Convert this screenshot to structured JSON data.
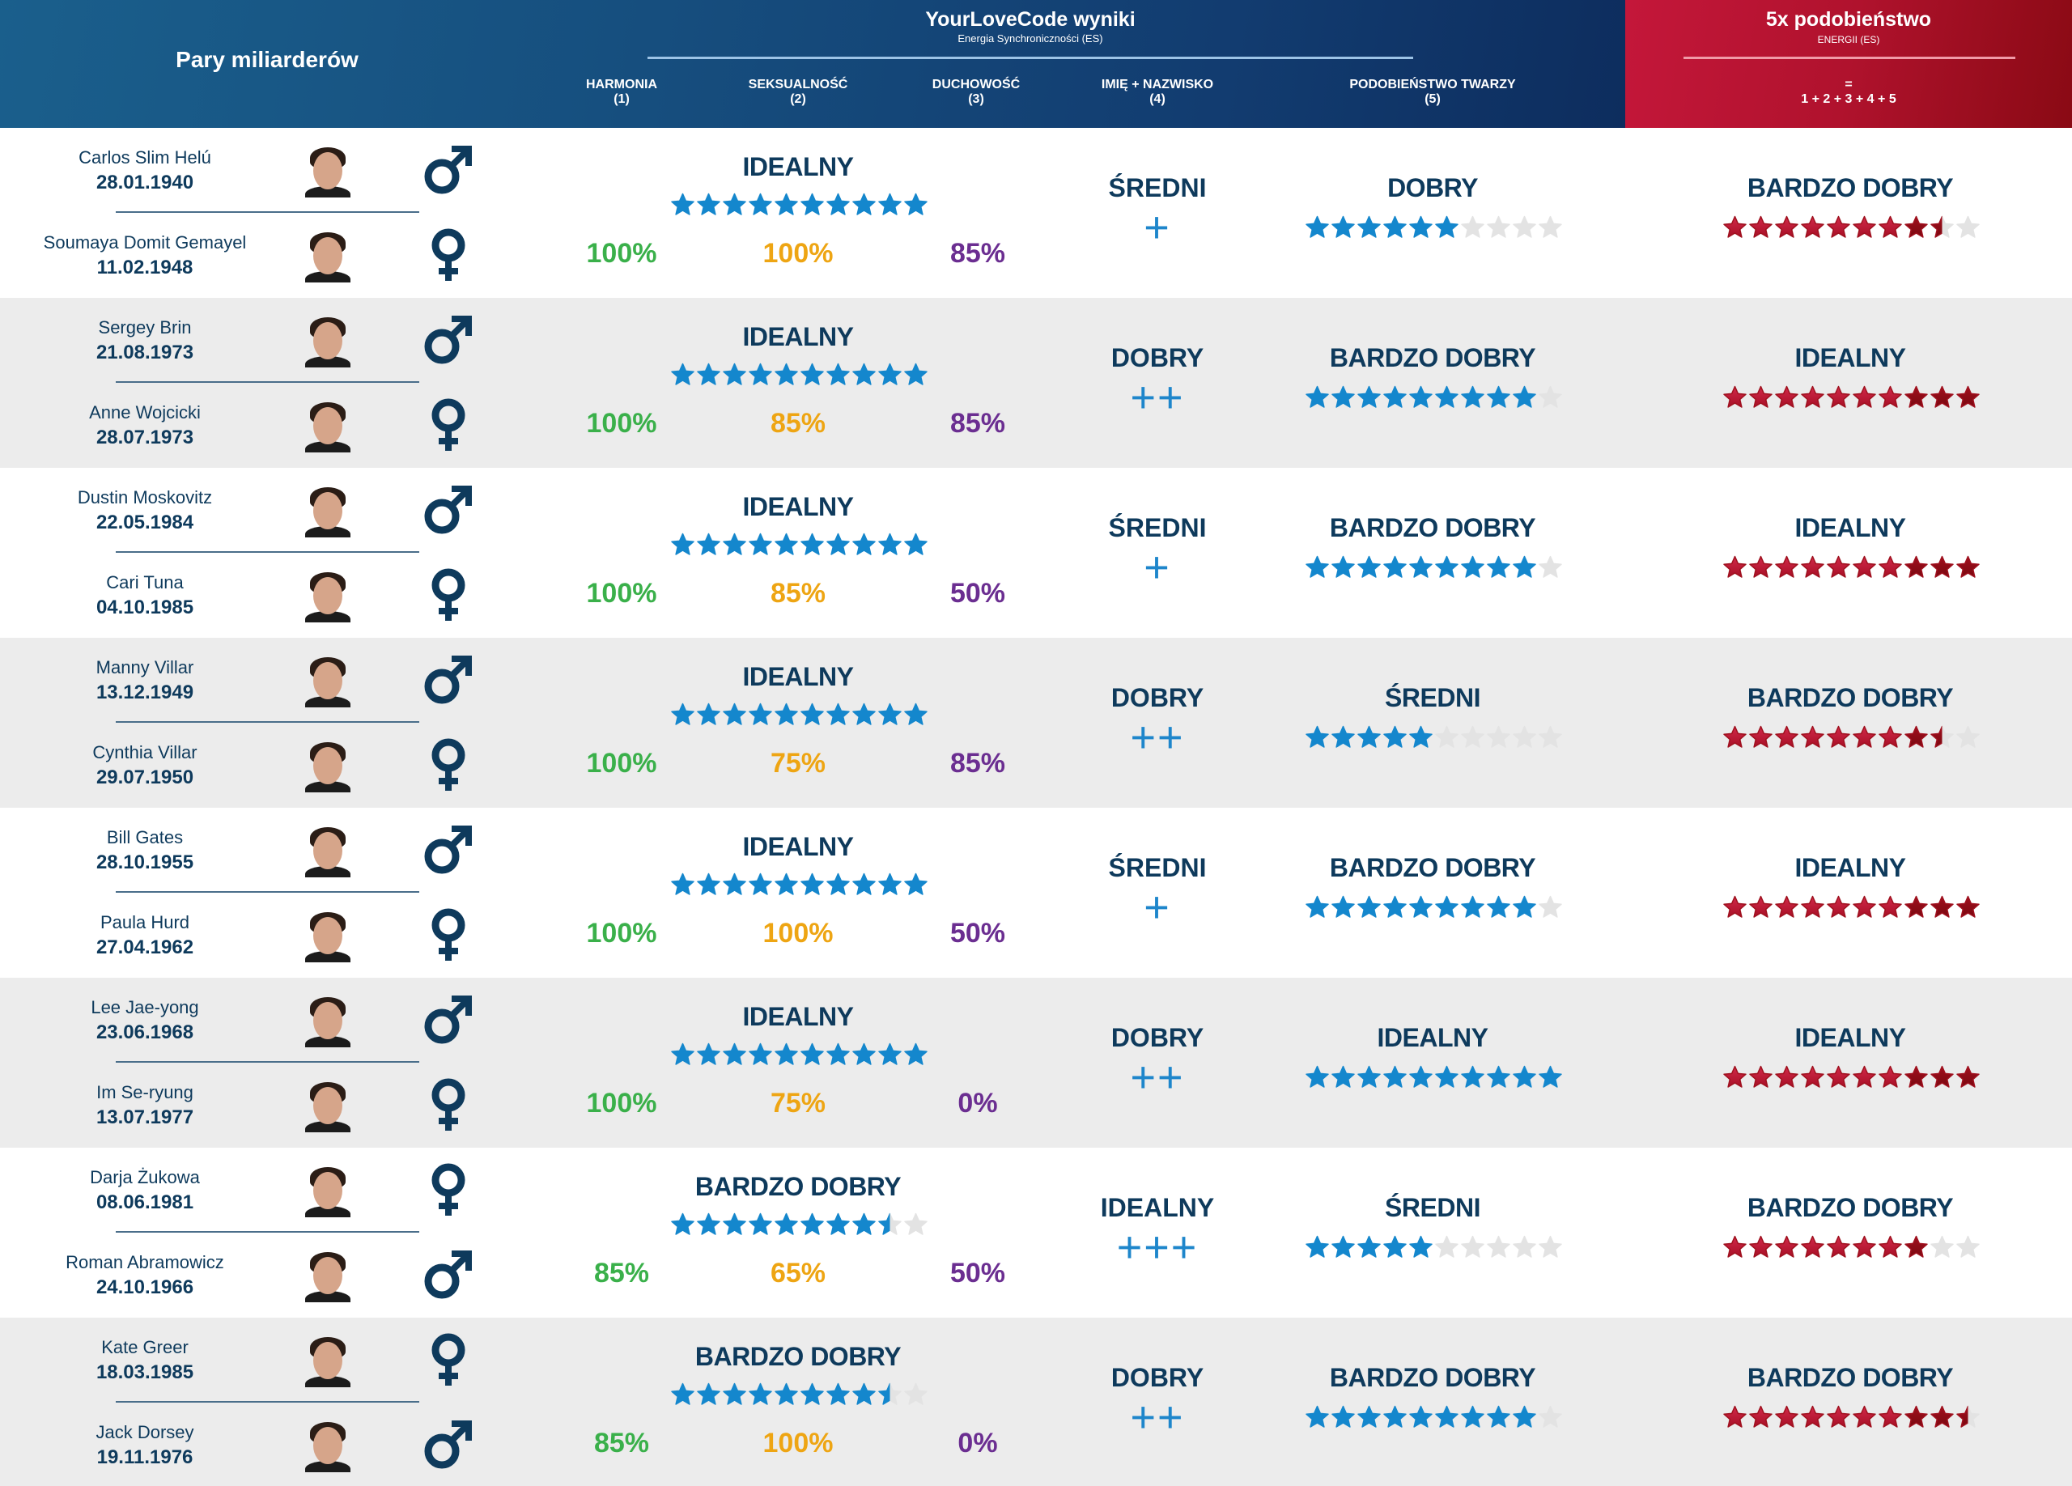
{
  "header": {
    "left_title": "Pary miliarderów",
    "main_title": "YourLoveCode wyniki",
    "main_subtitle": "Energia Synchroniczności (ES)",
    "columns": [
      {
        "label": "HARMONIA",
        "num": "(1)"
      },
      {
        "label": "SEKSUALNOŚĆ",
        "num": "(2)"
      },
      {
        "label": "DUCHOWOŚĆ",
        "num": "(3)"
      },
      {
        "label": "IMIĘ + NAZWISKO",
        "num": "(4)"
      },
      {
        "label": "PODOBIEŃSTWO TWARZY",
        "num": "(5)"
      }
    ],
    "red_title": "5x podobieństwo",
    "red_subtitle": "ENERGII (ES)",
    "red_eq": "=",
    "red_formula": "1 + 2 + 3 + 4 + 5"
  },
  "colors": {
    "header_blue": "#164e7e",
    "header_red": "#b0122d",
    "text_navy": "#0e3a5c",
    "star_blue": "#1487cd",
    "star_red": "#b8112b",
    "star_empty": "#e3e3e3",
    "harmonia": "#3ab04a",
    "seksualnosc": "#eea513",
    "duchowosc": "#6b2e91",
    "plus": "#1e86cb"
  },
  "max_stars": 10,
  "pairs": [
    {
      "people": [
        {
          "name": "Carlos Slim Helú",
          "date": "28.01.1940",
          "gender": "male"
        },
        {
          "name": "Soumaya Domit Gemayel",
          "date": "11.02.1948",
          "gender": "female"
        }
      ],
      "sync_label": "IDEALNY",
      "sync_stars": 10,
      "harmonia": "100%",
      "seksualnosc": "100%",
      "duchowosc": "85%",
      "name_label": "ŚREDNI",
      "name_plus": "+",
      "face_label": "DOBRY",
      "face_stars": 6,
      "total_label": "BARDZO DOBRY",
      "total_stars": 8.5
    },
    {
      "people": [
        {
          "name": "Sergey Brin",
          "date": "21.08.1973",
          "gender": "male"
        },
        {
          "name": "Anne Wojcicki",
          "date": "28.07.1973",
          "gender": "female"
        }
      ],
      "sync_label": "IDEALNY",
      "sync_stars": 10,
      "harmonia": "100%",
      "seksualnosc": "85%",
      "duchowosc": "85%",
      "name_label": "DOBRY",
      "name_plus": "++",
      "face_label": "BARDZO DOBRY",
      "face_stars": 9,
      "total_label": "IDEALNY",
      "total_stars": 10
    },
    {
      "people": [
        {
          "name": "Dustin Moskovitz",
          "date": "22.05.1984",
          "gender": "male"
        },
        {
          "name": "Cari Tuna",
          "date": "04.10.1985",
          "gender": "female"
        }
      ],
      "sync_label": "IDEALNY",
      "sync_stars": 10,
      "harmonia": "100%",
      "seksualnosc": "85%",
      "duchowosc": "50%",
      "name_label": "ŚREDNI",
      "name_plus": "+",
      "face_label": "BARDZO DOBRY",
      "face_stars": 9,
      "total_label": "IDEALNY",
      "total_stars": 10
    },
    {
      "people": [
        {
          "name": "Manny Villar",
          "date": "13.12.1949",
          "gender": "male"
        },
        {
          "name": "Cynthia Villar",
          "date": "29.07.1950",
          "gender": "female"
        }
      ],
      "sync_label": "IDEALNY",
      "sync_stars": 10,
      "harmonia": "100%",
      "seksualnosc": "75%",
      "duchowosc": "85%",
      "name_label": "DOBRY",
      "name_plus": "++",
      "face_label": "ŚREDNI",
      "face_stars": 5,
      "total_label": "BARDZO DOBRY",
      "total_stars": 8.5
    },
    {
      "people": [
        {
          "name": "Bill Gates",
          "date": "28.10.1955",
          "gender": "male"
        },
        {
          "name": "Paula Hurd",
          "date": "27.04.1962",
          "gender": "female"
        }
      ],
      "sync_label": "IDEALNY",
      "sync_stars": 10,
      "harmonia": "100%",
      "seksualnosc": "100%",
      "duchowosc": "50%",
      "name_label": "ŚREDNI",
      "name_plus": "+",
      "face_label": "BARDZO DOBRY",
      "face_stars": 9,
      "total_label": "IDEALNY",
      "total_stars": 10
    },
    {
      "people": [
        {
          "name": "Lee Jae-yong",
          "date": "23.06.1968",
          "gender": "male"
        },
        {
          "name": "Im Se-ryung",
          "date": "13.07.1977",
          "gender": "female"
        }
      ],
      "sync_label": "IDEALNY",
      "sync_stars": 10,
      "harmonia": "100%",
      "seksualnosc": "75%",
      "duchowosc": "0%",
      "name_label": "DOBRY",
      "name_plus": "++",
      "face_label": "IDEALNY",
      "face_stars": 10,
      "total_label": "IDEALNY",
      "total_stars": 10
    },
    {
      "people": [
        {
          "name": "Darja Żukowa",
          "date": "08.06.1981",
          "gender": "female"
        },
        {
          "name": "Roman Abramowicz",
          "date": "24.10.1966",
          "gender": "male"
        }
      ],
      "sync_label": "BARDZO DOBRY",
      "sync_stars": 8.5,
      "harmonia": "85%",
      "seksualnosc": "65%",
      "duchowosc": "50%",
      "name_label": "IDEALNY",
      "name_plus": "+++",
      "face_label": "ŚREDNI",
      "face_stars": 5,
      "total_label": "BARDZO DOBRY",
      "total_stars": 8
    },
    {
      "people": [
        {
          "name": "Kate Greer",
          "date": "18.03.1985",
          "gender": "female"
        },
        {
          "name": "Jack Dorsey",
          "date": "19.11.1976",
          "gender": "male"
        }
      ],
      "sync_label": "BARDZO DOBRY",
      "sync_stars": 8.5,
      "harmonia": "85%",
      "seksualnosc": "100%",
      "duchowosc": "0%",
      "name_label": "DOBRY",
      "name_plus": "++",
      "face_label": "BARDZO DOBRY",
      "face_stars": 9,
      "total_label": "BARDZO DOBRY",
      "total_stars": 9.5
    }
  ]
}
